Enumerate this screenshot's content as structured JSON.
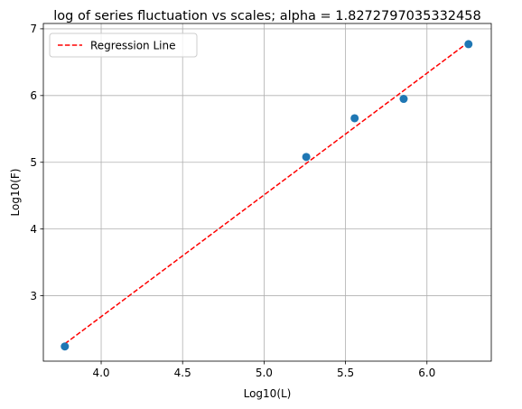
{
  "chart_data": {
    "type": "scatter",
    "title": "log of series fluctuation vs scales; alpha = 1.8272797035332458",
    "xlabel": "Log10(L)",
    "ylabel": "Log10(F)",
    "xlim": [
      3.645,
      6.395
    ],
    "ylim": [
      2.02,
      7.08
    ],
    "xticks": [
      4.0,
      4.5,
      5.0,
      5.5,
      6.0
    ],
    "xtick_labels": [
      "4.0",
      "4.5",
      "5.0",
      "5.5",
      "6.0"
    ],
    "yticks": [
      3,
      4,
      5,
      6,
      7
    ],
    "ytick_labels": [
      "3",
      "4",
      "5",
      "6",
      "7"
    ],
    "grid": true,
    "legend_position": "top-left",
    "colors": {
      "points": "#1f77b4",
      "regression": "#ff0000",
      "grid": "#b0b0b0"
    },
    "series": [
      {
        "kind": "points",
        "x": [
          3.777,
          5.259,
          5.556,
          5.857,
          6.255
        ],
        "y": [
          2.24,
          5.08,
          5.66,
          5.95,
          6.77
        ]
      },
      {
        "kind": "line",
        "name": "Regression Line",
        "style": "dashed",
        "x": [
          3.777,
          6.255
        ],
        "y": [
          2.28,
          6.8
        ]
      }
    ]
  }
}
